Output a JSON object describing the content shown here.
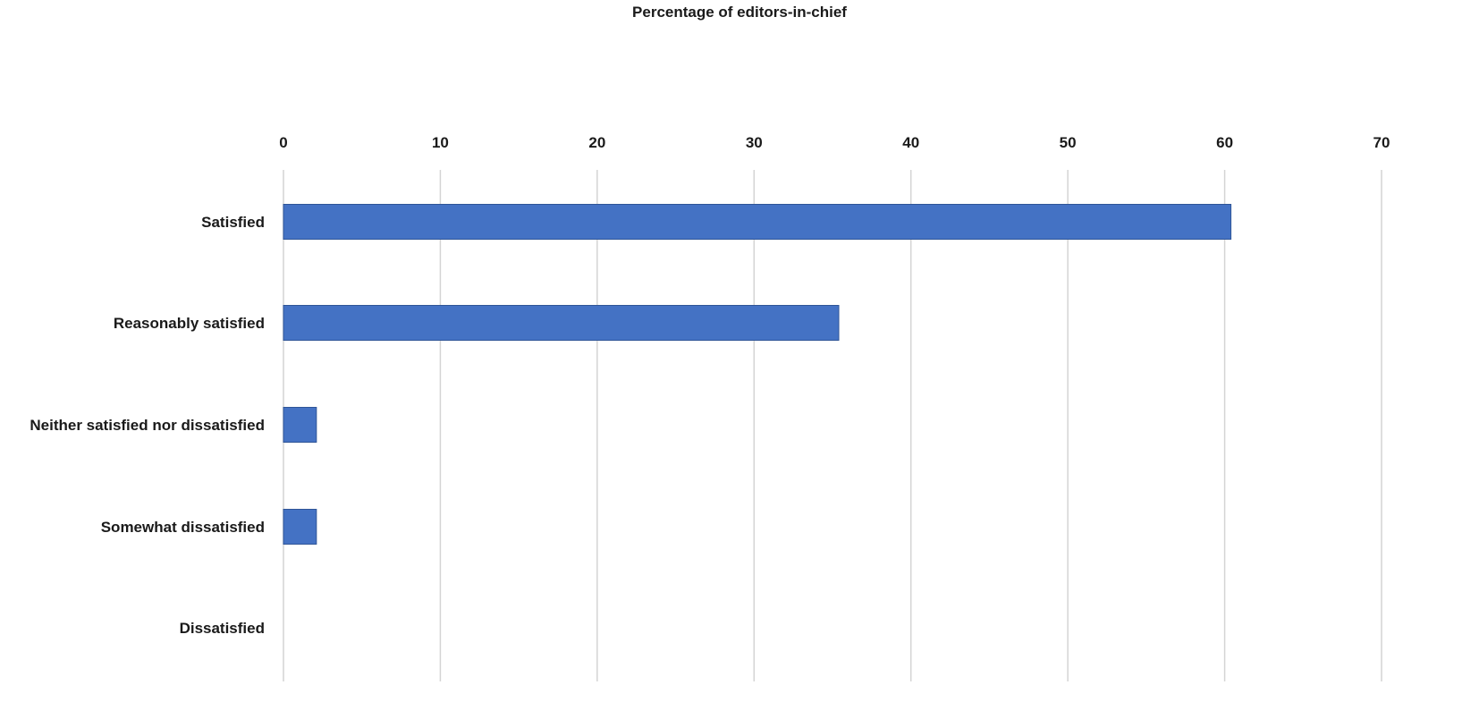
{
  "chart_data": {
    "type": "bar",
    "orientation": "horizontal",
    "title": "Percentage of editors-in-chief",
    "xlabel": "",
    "ylabel": "",
    "categories": [
      "Satisfied",
      "Reasonably satisfied",
      "Neither satisfied nor dissatisfied",
      "Somewhat dissatisfied",
      "Dissatisfied"
    ],
    "values": [
      60.4,
      35.4,
      2.1,
      2.1,
      0
    ],
    "xlim": [
      0,
      70
    ],
    "ticks": [
      0,
      10,
      20,
      30,
      40,
      50,
      60,
      70
    ],
    "axis_position": "top",
    "grid": true,
    "legend": "none",
    "bar_color": "#4472C4"
  }
}
